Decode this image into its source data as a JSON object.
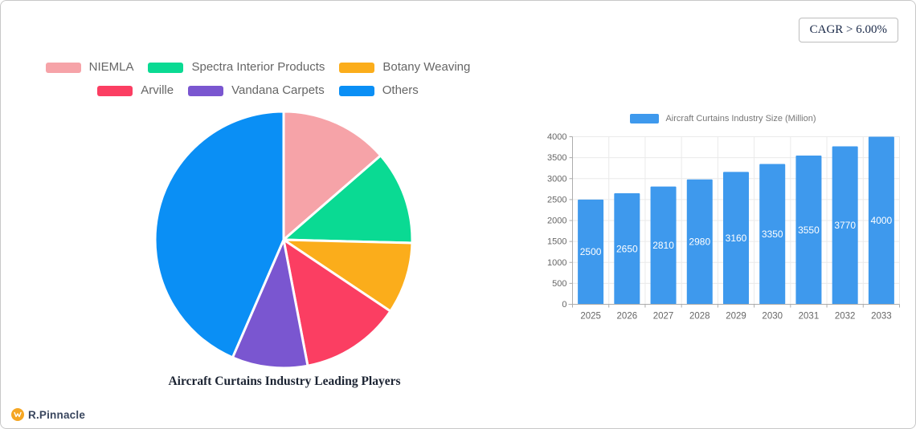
{
  "badge": {
    "text": "CAGR > 6.00%"
  },
  "brand": {
    "name": "R.Pinnacle",
    "icon_color": "#F5A623",
    "text_color": "#39465E"
  },
  "chart_data": [
    {
      "type": "pie",
      "title": "Aircraft Curtains Industry Leading Players",
      "labels": [
        "NIEMLA",
        "Spectra Interior Products",
        "Botany Weaving",
        "Arville",
        "Vandana Carpets",
        "Others"
      ],
      "values_percent_est": [
        13.6,
        11.8,
        9.0,
        12.6,
        9.5,
        43.5
      ],
      "colors": [
        "#F6A3A8",
        "#0ADA93",
        "#FBAD1B",
        "#FB3E62",
        "#7A56D0",
        "#0A8FF5"
      ],
      "legend_rows": [
        [
          0,
          1,
          2
        ],
        [
          3,
          4,
          5
        ]
      ],
      "legend_position": "top",
      "start_angle_deg": 0,
      "direction": "clockwise",
      "slice_border_color": "#FFFFFF"
    },
    {
      "type": "bar",
      "legend": "Aircraft Curtains Industry Size (Million)",
      "categories": [
        "2025",
        "2026",
        "2027",
        "2028",
        "2029",
        "2030",
        "2031",
        "2032",
        "2033"
      ],
      "values": [
        2500,
        2650,
        2810,
        2980,
        3160,
        3350,
        3550,
        3770,
        4000
      ],
      "ylim": [
        0,
        4000
      ],
      "ytick_step": 500,
      "bar_color": "#3E99ED",
      "grid": true,
      "value_label_color": "#FFFFFF",
      "legend_position": "top"
    }
  ],
  "colors": {
    "card_border": "#C8C8C8",
    "legend_text": "#666666",
    "axis_text": "#666666",
    "grid_line": "#EAEAEA",
    "axis_line": "#ACACAC",
    "serif_text": "#1B2A49"
  }
}
